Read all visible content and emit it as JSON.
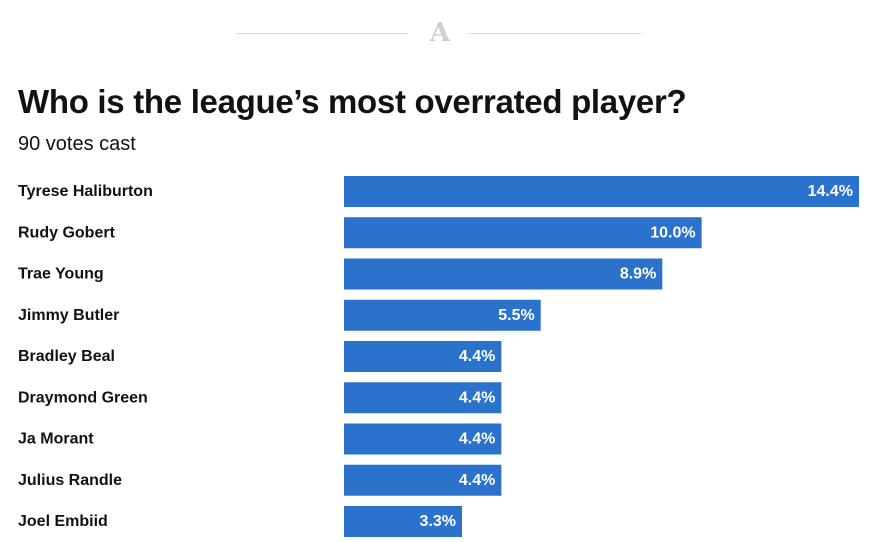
{
  "logo": {
    "icon": "athletic-a-logo",
    "letter": "A"
  },
  "title": "Who is the league’s most overrated player?",
  "subtitle": "90 votes cast",
  "colors": {
    "bar": "#2a72cc",
    "text": "#121212",
    "bar_label": "#ffffff"
  },
  "chart_data": {
    "type": "bar",
    "orientation": "horizontal",
    "title": "Who is the league’s most overrated player?",
    "subtitle": "90 votes cast",
    "categories": [
      "Tyrese Haliburton",
      "Rudy Gobert",
      "Trae Young",
      "Jimmy Butler",
      "Bradley Beal",
      "Draymond Green",
      "Ja Morant",
      "Julius Randle",
      "Joel Embiid"
    ],
    "values": [
      14.4,
      10.0,
      8.9,
      5.5,
      4.4,
      4.4,
      4.4,
      4.4,
      3.3
    ],
    "value_labels": [
      "14.4%",
      "10.0%",
      "8.9%",
      "5.5%",
      "4.4%",
      "4.4%",
      "4.4%",
      "4.4%",
      "3.3%"
    ],
    "unit": "%",
    "xlim": [
      0,
      14.4
    ],
    "grid": false,
    "legend": "none"
  }
}
